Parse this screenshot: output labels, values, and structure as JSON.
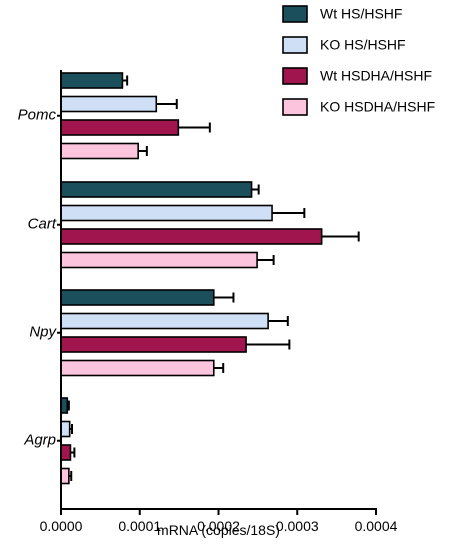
{
  "chart_data": {
    "type": "bar",
    "orientation": "horizontal",
    "categories": [
      "Pomc",
      "Cart",
      "Npy",
      "Agrp"
    ],
    "series": [
      {
        "name": "Wt HS/HSHF",
        "color": "#1b4f5c",
        "values": [
          7.8e-05,
          0.000242,
          0.000194,
          8e-06
        ],
        "errors": [
          6e-06,
          9e-06,
          2.5e-05,
          2e-06
        ]
      },
      {
        "name": "KO  HS/HSHF",
        "color": "#cfe0f6",
        "values": [
          0.000121,
          0.000268,
          0.000263,
          1.1e-05
        ],
        "errors": [
          2.6e-05,
          4.1e-05,
          2.5e-05,
          3e-06
        ]
      },
      {
        "name": "Wt HSDHA/HSHF",
        "color": "#a0154e",
        "values": [
          0.000149,
          0.000331,
          0.000235,
          1.2e-05
        ],
        "errors": [
          4e-05,
          4.7e-05,
          5.5e-05,
          5e-06
        ]
      },
      {
        "name": "KO  HSDHA/HSHF",
        "color": "#fcc5dd",
        "values": [
          9.8e-05,
          0.000249,
          0.000194,
          1e-05
        ],
        "errors": [
          1.1e-05,
          2.1e-05,
          1.2e-05,
          3e-06
        ]
      }
    ],
    "xlabel": "mRNA (copies/18S)",
    "ylabel": "",
    "xlim": [
      0,
      0.0004
    ],
    "xticks": [
      "0.0000",
      "0.0001",
      "0.0002",
      "0.0003",
      "0.0004"
    ],
    "xtick_values": [
      0,
      0.0001,
      0.0002,
      0.0003,
      0.0004
    ],
    "grid": false,
    "legend_position": "top-right"
  }
}
